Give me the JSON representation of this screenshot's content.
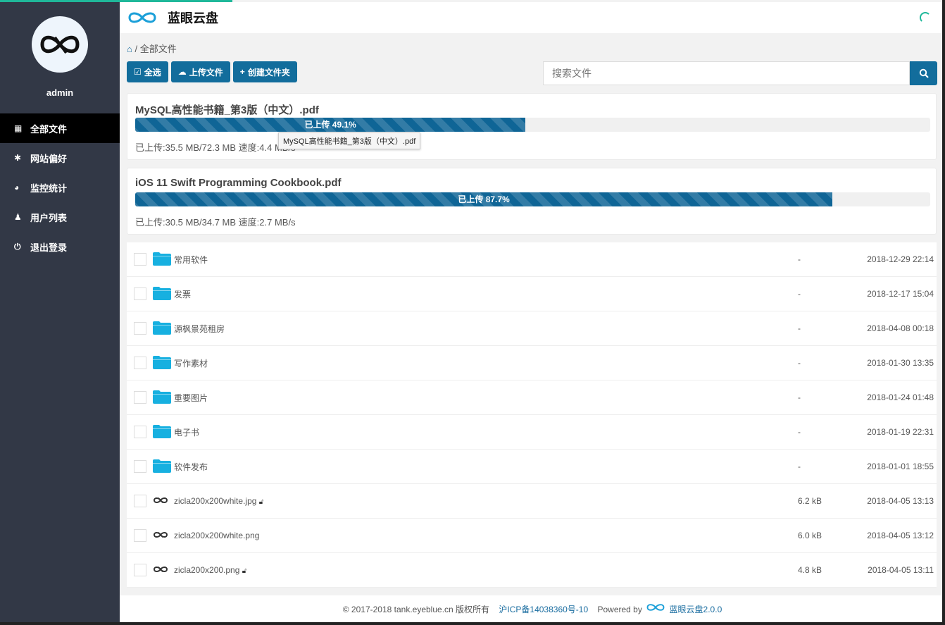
{
  "app": {
    "brand": "蓝眼云盘",
    "accent": "#126d9c"
  },
  "sidebar": {
    "username": "admin",
    "items": [
      {
        "label": "全部文件",
        "icon": "grid-icon",
        "active": true
      },
      {
        "label": "网站偏好",
        "icon": "gear-icon"
      },
      {
        "label": "监控统计",
        "icon": "dashboard-icon"
      },
      {
        "label": "用户列表",
        "icon": "user-icon"
      },
      {
        "label": "退出登录",
        "icon": "power-icon"
      }
    ]
  },
  "breadcrumb": {
    "sep": "/",
    "current": "全部文件"
  },
  "toolbar": {
    "select_all": "全选",
    "upload": "上传文件",
    "create_folder": "创建文件夹"
  },
  "search": {
    "placeholder": "搜索文件"
  },
  "uploads": [
    {
      "name": "MySQL高性能书籍_第3版（中文）.pdf",
      "progress": 49.1,
      "label": "已上传 49.1%",
      "stat": "已上传:35.5 MB/72.3 MB 速度:4.4 MB/s",
      "tooltip": "MySQL高性能书籍_第3版（中文）.pdf"
    },
    {
      "name": "iOS 11 Swift Programming Cookbook.pdf",
      "progress": 87.7,
      "label": "已上传 87.7%",
      "stat": "已上传:30.5 MB/34.7 MB 速度:2.7 MB/s"
    }
  ],
  "files": [
    {
      "name": "常用软件",
      "type": "folder",
      "size": "-",
      "date": "2018-12-29 22:14"
    },
    {
      "name": "发票",
      "type": "folder",
      "size": "-",
      "date": "2018-12-17 15:04"
    },
    {
      "name": "源枫景苑租房",
      "type": "folder",
      "size": "-",
      "date": "2018-04-08 00:18"
    },
    {
      "name": "写作素材",
      "type": "folder",
      "size": "-",
      "date": "2018-01-30 13:35"
    },
    {
      "name": "重要图片",
      "type": "folder",
      "size": "-",
      "date": "2018-01-24 01:48"
    },
    {
      "name": "电子书",
      "type": "folder",
      "size": "-",
      "date": "2018-01-19 22:31"
    },
    {
      "name": "软件发布",
      "type": "folder",
      "size": "-",
      "date": "2018-01-01 18:55"
    },
    {
      "name": "zicla200x200white.jpg",
      "type": "image",
      "public": true,
      "size": "6.2 kB",
      "date": "2018-04-05 13:13"
    },
    {
      "name": "zicla200x200white.png",
      "type": "image",
      "public": false,
      "size": "6.0 kB",
      "date": "2018-04-05 13:12"
    },
    {
      "name": "zicla200x200.png",
      "type": "image",
      "public": true,
      "size": "4.8 kB",
      "date": "2018-04-05 13:11"
    }
  ],
  "footer": {
    "copyright": "© 2017-2018 tank.eyeblue.cn 版权所有",
    "icp": "沪ICP备14038360号-10",
    "powered": "Powered by",
    "product": "蓝眼云盘2.0.0"
  }
}
